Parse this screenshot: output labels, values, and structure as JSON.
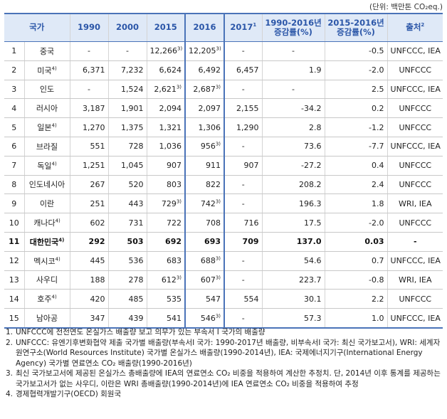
{
  "unit_label": "(단위: 백만톤 CO₂eq.)",
  "headers": {
    "country": "국가",
    "y1990": "1990",
    "y2000": "2000",
    "y2015": "2015",
    "y2016": "2016",
    "y2017": "2017",
    "y2017_sup": "1",
    "chg1990_line1": "1990-2016년",
    "chg1990_line2": "증감률(%)",
    "chg2015_line1": "2015-2016년",
    "chg2015_line2": "증감률(%)",
    "source": "출처",
    "source_sup": "2"
  },
  "rows": [
    {
      "no": "1",
      "country": "중국",
      "country_sup": "",
      "v1990": "-",
      "v2000": "-",
      "v2015": "12,266",
      "v2015_sup": "3)",
      "v2016": "12,205",
      "v2016_sup": "3)",
      "v2017": "-",
      "c1": "-",
      "c2": "-0.5",
      "src": "UNFCCC, IEA"
    },
    {
      "no": "2",
      "country": "미국",
      "country_sup": "4)",
      "v1990": "6,371",
      "v2000": "7,232",
      "v2015": "6,624",
      "v2015_sup": "",
      "v2016": "6,492",
      "v2016_sup": "",
      "v2017": "6,457",
      "c1": "1.9",
      "c2": "-2.0",
      "src": "UNFCCC"
    },
    {
      "no": "3",
      "country": "인도",
      "country_sup": "",
      "v1990": "-",
      "v2000": "1,524",
      "v2015": "2,621",
      "v2015_sup": "3)",
      "v2016": "2,687",
      "v2016_sup": "3)",
      "v2017": "-",
      "c1": "-",
      "c2": "2.5",
      "src": "UNFCCC, IEA"
    },
    {
      "no": "4",
      "country": "러시아",
      "country_sup": "",
      "v1990": "3,187",
      "v2000": "1,901",
      "v2015": "2,094",
      "v2015_sup": "",
      "v2016": "2,097",
      "v2016_sup": "",
      "v2017": "2,155",
      "c1": "-34.2",
      "c2": "0.2",
      "src": "UNFCCC"
    },
    {
      "no": "5",
      "country": "일본",
      "country_sup": "4)",
      "v1990": "1,270",
      "v2000": "1,375",
      "v2015": "1,321",
      "v2015_sup": "",
      "v2016": "1,306",
      "v2016_sup": "",
      "v2017": "1,290",
      "c1": "2.8",
      "c2": "-1.2",
      "src": "UNFCCC"
    },
    {
      "no": "6",
      "country": "브라질",
      "country_sup": "",
      "v1990": "551",
      "v2000": "728",
      "v2015": "1,036",
      "v2015_sup": "",
      "v2016": "956",
      "v2016_sup": "3)",
      "v2017": "-",
      "c1": "73.6",
      "c2": "-7.7",
      "src": "UNFCCC, IEA"
    },
    {
      "no": "7",
      "country": "독일",
      "country_sup": "4)",
      "v1990": "1,251",
      "v2000": "1,045",
      "v2015": "907",
      "v2015_sup": "",
      "v2016": "911",
      "v2016_sup": "",
      "v2017": "907",
      "c1": "-27.2",
      "c2": "0.4",
      "src": "UNFCCC"
    },
    {
      "no": "8",
      "country": "인도네시아",
      "country_sup": "",
      "v1990": "267",
      "v2000": "520",
      "v2015": "803",
      "v2015_sup": "",
      "v2016": "822",
      "v2016_sup": "",
      "v2017": "-",
      "c1": "208.2",
      "c2": "2.4",
      "src": "UNFCCC"
    },
    {
      "no": "9",
      "country": "이란",
      "country_sup": "",
      "v1990": "251",
      "v2000": "443",
      "v2015": "729",
      "v2015_sup": "3)",
      "v2016": "742",
      "v2016_sup": "3)",
      "v2017": "-",
      "c1": "196.3",
      "c2": "1.8",
      "src": "WRI, IEA"
    },
    {
      "no": "10",
      "country": "캐나다",
      "country_sup": "4)",
      "v1990": "602",
      "v2000": "731",
      "v2015": "722",
      "v2015_sup": "",
      "v2016": "708",
      "v2016_sup": "",
      "v2017": "716",
      "c1": "17.5",
      "c2": "-2.0",
      "src": "UNFCCC"
    },
    {
      "no": "11",
      "country": "대한민국",
      "country_sup": "4)",
      "v1990": "292",
      "v2000": "503",
      "v2015": "692",
      "v2015_sup": "",
      "v2016": "693",
      "v2016_sup": "",
      "v2017": "709",
      "c1": "137.0",
      "c2": "0.03",
      "src": "-"
    },
    {
      "no": "12",
      "country": "멕시코",
      "country_sup": "4)",
      "v1990": "445",
      "v2000": "536",
      "v2015": "683",
      "v2015_sup": "",
      "v2016": "688",
      "v2016_sup": "3)",
      "v2017": "-",
      "c1": "54.6",
      "c2": "0.7",
      "src": "UNFCCC, IEA"
    },
    {
      "no": "13",
      "country": "사우디",
      "country_sup": "",
      "v1990": "188",
      "v2000": "278",
      "v2015": "612",
      "v2015_sup": "3)",
      "v2016": "607",
      "v2016_sup": "3)",
      "v2017": "-",
      "c1": "223.7",
      "c2": "-0.8",
      "src": "WRI, IEA"
    },
    {
      "no": "14",
      "country": "호주",
      "country_sup": "4)",
      "v1990": "420",
      "v2000": "485",
      "v2015": "535",
      "v2015_sup": "",
      "v2016": "547",
      "v2016_sup": "",
      "v2017": "554",
      "c1": "30.1",
      "c2": "2.2",
      "src": "UNFCCC"
    },
    {
      "no": "15",
      "country": "남아공",
      "country_sup": "",
      "v1990": "347",
      "v2000": "439",
      "v2015": "541",
      "v2015_sup": "",
      "v2016": "546",
      "v2016_sup": "3)",
      "v2017": "-",
      "c1": "57.3",
      "c2": "1.0",
      "src": "UNFCCC, IEA"
    }
  ],
  "notes": [
    {
      "n": "1.",
      "text": "UNFCCC에 전전연도 온실가스 배출량 보고 의무가 있는 부속서 I 국가의 배출량"
    },
    {
      "n": "2.",
      "text": "UNFCCC: 유엔기후변화협약 제출 국가별 배출량(부속서I 국가: 1990-2017년 배출량, 비부속서I 국가: 최신 국가보고서), WRI: 세계자원연구소(World Resources Institute) 국가별 온실가스 배출량(1990-2014년), IEA: 국제에너지기구(International Energy Agency) 국가별 연료연소 CO₂ 배출량(1990-2016년)"
    },
    {
      "n": "3.",
      "text": "최신 국가보고서에 제공된 온실가스 총배출량에 IEA의 연료연소 CO₂ 비중을 적용하여 계산한 추정치. 단, 2014년 이후 통계를 제공하는 국가보고서가 없는 사우디, 이란은 WRI 총배출량(1990-2014년)에 IEA 연료연소 CO₂ 비중을 적용하여 추정"
    },
    {
      "n": "4.",
      "text": "경제협력개발기구(OECD) 회원국"
    }
  ]
}
